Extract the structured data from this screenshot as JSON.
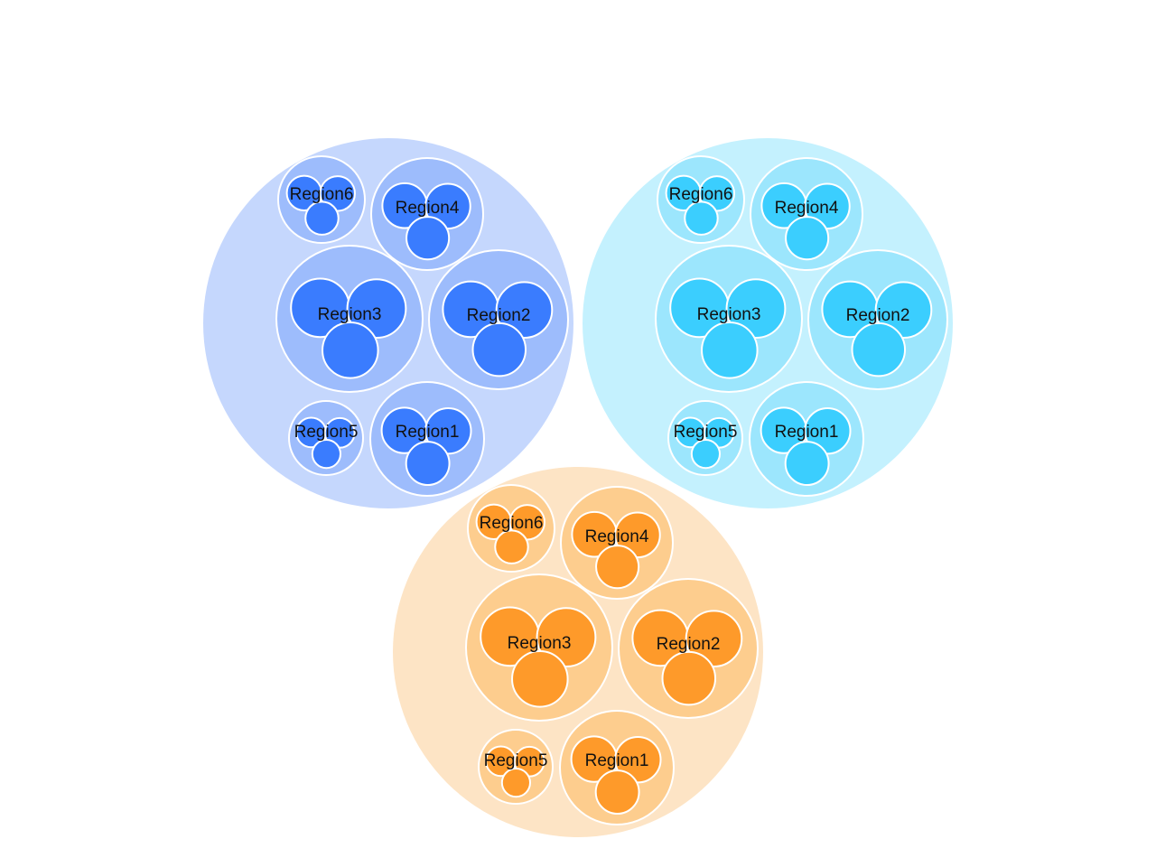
{
  "chart_data": {
    "type": "circle-packing",
    "groups": [
      {
        "colors": {
          "outer": "#c5d7fd",
          "region": "#9dbcfc",
          "leaf": "#3a7cfe"
        },
        "regions": [
          {
            "label": "Region6",
            "leaves": [
              1,
              1,
              1
            ]
          },
          {
            "label": "Region4",
            "leaves": [
              1,
              1,
              1
            ]
          },
          {
            "label": "Region3",
            "leaves": [
              1,
              1,
              1
            ]
          },
          {
            "label": "Region2",
            "leaves": [
              1,
              1,
              1
            ]
          },
          {
            "label": "Region5",
            "leaves": [
              1,
              1,
              1
            ]
          },
          {
            "label": "Region1",
            "leaves": [
              1,
              1,
              1
            ]
          }
        ]
      },
      {
        "colors": {
          "outer": "#c4f1fe",
          "region": "#9ce6fd",
          "leaf": "#3bcefe"
        },
        "regions": [
          {
            "label": "Region6",
            "leaves": [
              1,
              1,
              1
            ]
          },
          {
            "label": "Region4",
            "leaves": [
              1,
              1,
              1
            ]
          },
          {
            "label": "Region3",
            "leaves": [
              1,
              1,
              1
            ]
          },
          {
            "label": "Region2",
            "leaves": [
              1,
              1,
              1
            ]
          },
          {
            "label": "Region5",
            "leaves": [
              1,
              1,
              1
            ]
          },
          {
            "label": "Region1",
            "leaves": [
              1,
              1,
              1
            ]
          }
        ]
      },
      {
        "colors": {
          "outer": "#fde4c5",
          "region": "#fdcd8e",
          "leaf": "#fe9a2a"
        },
        "regions": [
          {
            "label": "Region6",
            "leaves": [
              1,
              1,
              1
            ]
          },
          {
            "label": "Region4",
            "leaves": [
              1,
              1,
              1
            ]
          },
          {
            "label": "Region3",
            "leaves": [
              1,
              1,
              1
            ]
          },
          {
            "label": "Region2",
            "leaves": [
              1,
              1,
              1
            ]
          },
          {
            "label": "Region5",
            "leaves": [
              1,
              1,
              1
            ]
          },
          {
            "label": "Region1",
            "leaves": [
              1,
              1,
              1
            ]
          }
        ]
      }
    ]
  }
}
